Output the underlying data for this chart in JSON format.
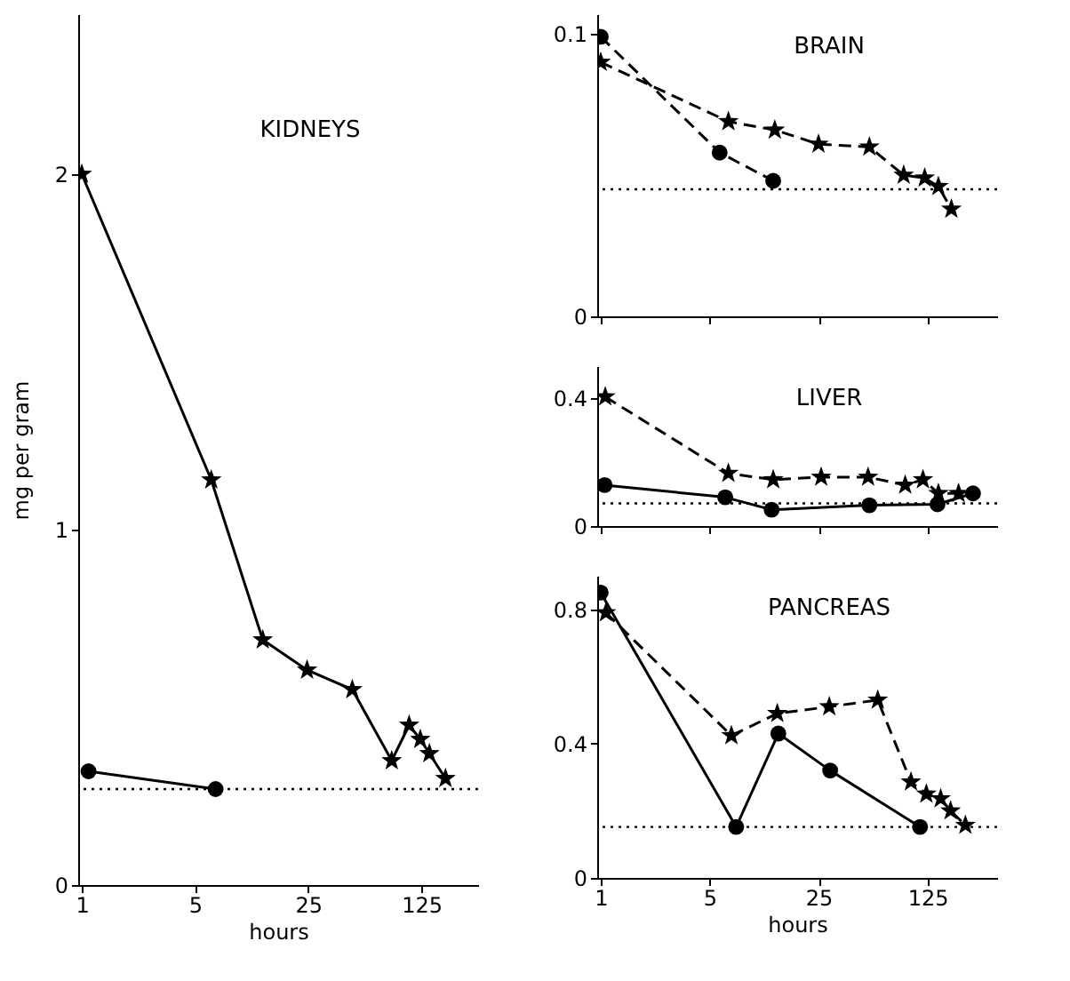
{
  "chart_data": [
    {
      "type": "line",
      "title": "KIDNEYS",
      "xlabel": "hours",
      "ylabel": "mg per gram",
      "log": "x",
      "xlim": [
        0.95,
        280
      ],
      "xticks": [
        1,
        5,
        25,
        125
      ],
      "ylim": [
        0,
        2.45
      ],
      "yticks": [
        0,
        1,
        2
      ],
      "series": [
        {
          "color": "#000000",
          "marker": "star",
          "line_style": "solid",
          "x": [
            1,
            6.3,
            13.1,
            24.6,
            46.8,
            82,
            105,
            123,
            140,
            176
          ],
          "values": [
            2.0,
            1.14,
            0.69,
            0.605,
            0.55,
            0.35,
            0.45,
            0.41,
            0.37,
            0.3
          ]
        },
        {
          "color": "#000000",
          "marker": "circle",
          "line_style": "solid",
          "x": [
            1.1,
            6.7
          ],
          "values": [
            0.32,
            0.27
          ]
        }
      ],
      "ref_lines": [
        {
          "axis": "y",
          "value": 0.27,
          "line_style": "dotted"
        }
      ]
    },
    {
      "type": "line",
      "title": "BRAIN",
      "log": "x",
      "xlim": [
        0.95,
        350
      ],
      "xticks": [
        1,
        5,
        25,
        125
      ],
      "ylim": [
        0,
        0.107
      ],
      "yticks": [
        0,
        0.1
      ],
      "tick_labels": "y",
      "series": [
        {
          "color": "#000000",
          "marker": "star",
          "line_style": "dashed",
          "x": [
            1,
            6.6,
            13.1,
            25,
            53,
            88,
            120,
            147,
            178
          ],
          "values": [
            0.09,
            0.069,
            0.066,
            0.061,
            0.06,
            0.05,
            0.049,
            0.046,
            0.038
          ]
        },
        {
          "color": "#000000",
          "marker": "circle",
          "line_style": "dashed",
          "x": [
            1,
            5.8,
            12.8
          ],
          "values": [
            0.099,
            0.058,
            0.048
          ]
        }
      ],
      "ref_lines": [
        {
          "axis": "y",
          "value": 0.045,
          "line_style": "dotted"
        }
      ]
    },
    {
      "type": "line",
      "title": "LIVER",
      "log": "x",
      "xlim": [
        0.95,
        350
      ],
      "xticks": [
        1,
        5,
        25,
        125
      ],
      "ylim": [
        0,
        0.5
      ],
      "yticks": [
        0,
        0.4
      ],
      "tick_labels": "y",
      "series": [
        {
          "color": "#000000",
          "marker": "star",
          "line_style": "dashed",
          "x": [
            1.07,
            6.6,
            12.8,
            26,
            52,
            90,
            117,
            147,
            198
          ],
          "values": [
            0.404,
            0.165,
            0.145,
            0.153,
            0.153,
            0.128,
            0.145,
            0.102,
            0.102
          ]
        },
        {
          "color": "#000000",
          "marker": "circle",
          "line_style": "solid",
          "x": [
            1.06,
            6.3,
            12.5,
            53,
            145,
            245
          ],
          "values": [
            0.128,
            0.09,
            0.051,
            0.065,
            0.068,
            0.102
          ]
        }
      ],
      "ref_lines": [
        {
          "axis": "y",
          "value": 0.071,
          "line_style": "dotted"
        }
      ]
    },
    {
      "type": "line",
      "title": "PANCREAS",
      "xlabel": "hours",
      "log": "x",
      "xlim": [
        0.95,
        350
      ],
      "xticks": [
        1,
        5,
        25,
        125
      ],
      "ylim": [
        0,
        0.9
      ],
      "yticks": [
        0,
        0.4,
        0.8
      ],
      "series": [
        {
          "color": "#000000",
          "marker": "star",
          "line_style": "dashed",
          "x": [
            1.08,
            6.9,
            13.6,
            29.3,
            60,
            98,
            123,
            152,
            176,
            219
          ],
          "values": [
            0.79,
            0.424,
            0.49,
            0.51,
            0.53,
            0.286,
            0.25,
            0.236,
            0.2,
            0.157
          ]
        },
        {
          "color": "#000000",
          "marker": "circle",
          "line_style": "solid",
          "x": [
            1,
            7.4,
            13.8,
            29.7,
            112
          ],
          "values": [
            0.85,
            0.152,
            0.43,
            0.32,
            0.152
          ]
        }
      ],
      "ref_lines": [
        {
          "axis": "y",
          "value": 0.152,
          "line_style": "dotted"
        }
      ]
    }
  ]
}
